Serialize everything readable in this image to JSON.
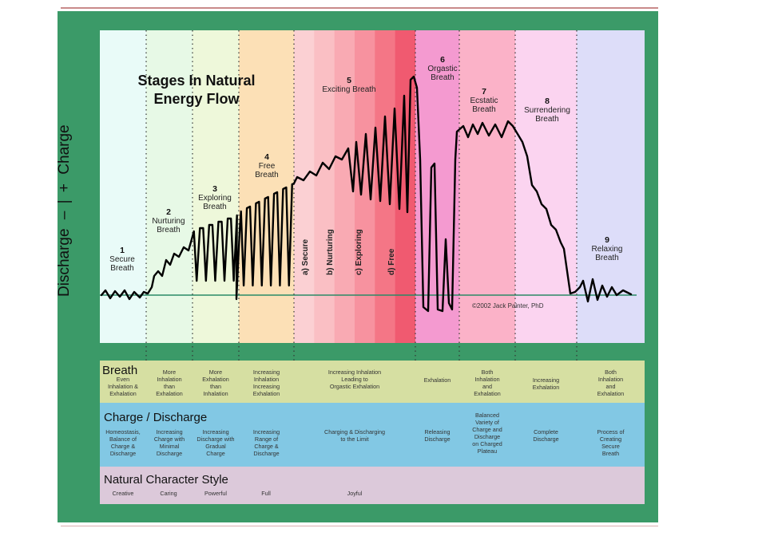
{
  "title": [
    "Stages In Natural",
    "Energy Flow"
  ],
  "axis": {
    "charge": "Charge",
    "plus": "+",
    "minus": "–",
    "discharge": "Discharge"
  },
  "copyright": "©2002 Jack Painter, PhD",
  "colors": {
    "frame": "#3b9a68",
    "bands": [
      "#e9fbf8",
      "#e7f9e6",
      "#eef8da",
      "#fce0b6",
      "#fbc0c4",
      "#f698bc",
      "#fbb2c8",
      "#fbd4f0",
      "#ddddf9"
    ],
    "breath_row": "#d6dfa2",
    "charge_row": "#82c8e4",
    "character_row": "#dcc9da",
    "curve": "#000000",
    "baseline": "#2a8a66"
  },
  "stages": [
    {
      "num": "1",
      "name": [
        "Secure",
        "Breath"
      ]
    },
    {
      "num": "2",
      "name": [
        "Nurturing",
        "Breath"
      ]
    },
    {
      "num": "3",
      "name": [
        "Exploring",
        "Breath"
      ]
    },
    {
      "num": "4",
      "name": [
        "Free",
        "Breath"
      ]
    },
    {
      "num": "5",
      "name": [
        "Exciting Breath"
      ]
    },
    {
      "num": "6",
      "name": [
        "Orgastic",
        "Breath"
      ]
    },
    {
      "num": "7",
      "name": [
        "Ecstatic",
        "Breath"
      ]
    },
    {
      "num": "8",
      "name": [
        "Surrendering",
        "Breath"
      ]
    },
    {
      "num": "9",
      "name": [
        "Relaxing",
        "Breath"
      ]
    }
  ],
  "substages": [
    "a) Secure",
    "b) Nurturing",
    "c) Exploring",
    "d) Free"
  ],
  "rows": {
    "breath": {
      "title": "Breath",
      "cells": [
        [
          "Even",
          "Inhalation &",
          "Exhalation"
        ],
        [
          "More",
          "Inhalation",
          "than",
          "Exhalation"
        ],
        [
          "More",
          "Exhalation",
          "than",
          "Inhalation"
        ],
        [
          "Increasing",
          "Inhalation",
          "Increasing",
          "Exhalation"
        ],
        [
          "Increasing Inhalation",
          "Leading to",
          "Orgastic Exhalation"
        ],
        [
          "Exhalation"
        ],
        [
          "Both",
          "Inhalation",
          "and",
          "Exhalation"
        ],
        [
          "Increasing",
          "Exhalation"
        ],
        [
          "Both",
          "Inhalation",
          "and",
          "Exhalation"
        ]
      ]
    },
    "charge": {
      "title": "Charge / Discharge",
      "cells": [
        [
          "Homeostasis,",
          "Balance of",
          "Charge &",
          "Discharge"
        ],
        [
          "Increasing",
          "Charge with",
          "Minimal",
          "Discharge"
        ],
        [
          "Increasing",
          "Discharge with",
          "Gradual",
          "Charge"
        ],
        [
          "Increasing",
          "Range of",
          "Charge &",
          "Discharge"
        ],
        [
          "Charging & Discharging",
          "to the Limit"
        ],
        [
          "Releasing",
          "Discharge"
        ],
        [
          "Balanced",
          "Variety of",
          "Charge and",
          "Discharge",
          "on Charged",
          "Plateau"
        ],
        [
          "Complete",
          "Discharge"
        ],
        [
          "Process of",
          "Creating",
          "Secure",
          "Breath"
        ]
      ]
    },
    "character": {
      "title": "Natural Character Style",
      "cells": [
        "Creative",
        "Caring",
        "Powerful",
        "Full",
        "Joyful"
      ]
    }
  }
}
